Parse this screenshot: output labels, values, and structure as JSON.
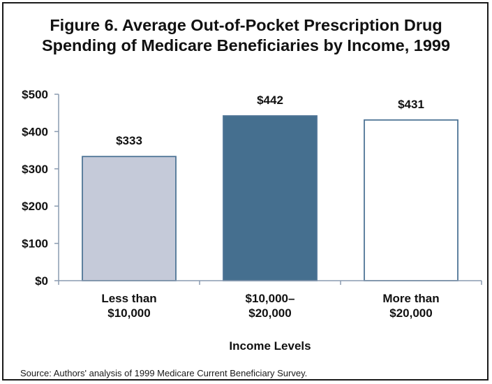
{
  "chart_data": {
    "type": "bar",
    "title_lines": [
      "Figure 6. Average Out-of-Pocket Prescription Drug",
      "Spending of Medicare Beneficiaries by Income, 1999"
    ],
    "categories": [
      [
        "Less than",
        "$10,000"
      ],
      [
        "$10,000–",
        "$20,000"
      ],
      [
        "More than",
        "$20,000"
      ]
    ],
    "values": [
      333,
      442,
      431
    ],
    "data_labels": [
      "$333",
      "$442",
      "$431"
    ],
    "bar_colors": [
      "#c5cad9",
      "#456f8f",
      "#ffffff"
    ],
    "bar_stroke": "#4f7596",
    "xlabel": "Income Levels",
    "ylabel": "",
    "ylim": [
      0,
      500
    ],
    "yticks": [
      0,
      100,
      200,
      300,
      400,
      500
    ],
    "ytick_labels": [
      "$0",
      "$100",
      "$200",
      "$300",
      "$400",
      "$500"
    ],
    "grid": false,
    "legend": "none"
  },
  "source_note": "Source: Authors' analysis of 1999 Medicare Current Beneficiary Survey."
}
